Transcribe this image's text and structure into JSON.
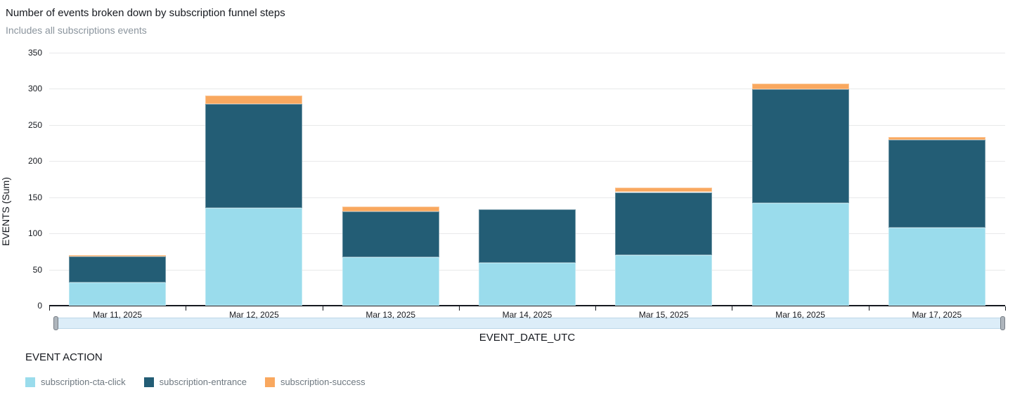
{
  "header": {
    "title": "Number of events broken down by subscription funnel steps",
    "subtitle": "Includes all subscriptions events"
  },
  "chart_data": {
    "type": "bar",
    "stacked": true,
    "title": "Number of events broken down by subscription funnel steps",
    "subtitle": "Includes all subscriptions events",
    "xlabel": "EVENT_DATE_UTC",
    "ylabel": "EVENTS (Sum)",
    "ylim": [
      0,
      350
    ],
    "ytick_step": 50,
    "grid": true,
    "legend_title": "EVENT ACTION",
    "legend_position": "bottom",
    "categories": [
      "Mar 11, 2025",
      "Mar 12, 2025",
      "Mar 13, 2025",
      "Mar 14, 2025",
      "Mar 15, 2025",
      "Mar 16, 2025",
      "Mar 17, 2025"
    ],
    "series": [
      {
        "name": "subscription-cta-click",
        "color": "#9ADCEC",
        "values": [
          32,
          135,
          67,
          59,
          70,
          142,
          108
        ]
      },
      {
        "name": "subscription-entrance",
        "color": "#235D75",
        "values": [
          36,
          144,
          63,
          74,
          87,
          157,
          121
        ]
      },
      {
        "name": "subscription-success",
        "color": "#F9A85F",
        "values": [
          2,
          12,
          7,
          0,
          6,
          8,
          4
        ]
      }
    ],
    "totals": [
      70,
      291,
      137,
      133,
      163,
      307,
      233
    ]
  },
  "slider": {
    "range_start_label": "Mar 11, 2025",
    "range_end_label": "Mar 17, 2025"
  },
  "colors": {
    "grid": "#E8E9EA",
    "axis": "#16191F",
    "slider_track": "#DCEDF8",
    "slider_handle": "#AEB5BC",
    "title_text": "#16191F",
    "subtitle_text": "#8B959E",
    "legend_text": "#6E7880"
  }
}
